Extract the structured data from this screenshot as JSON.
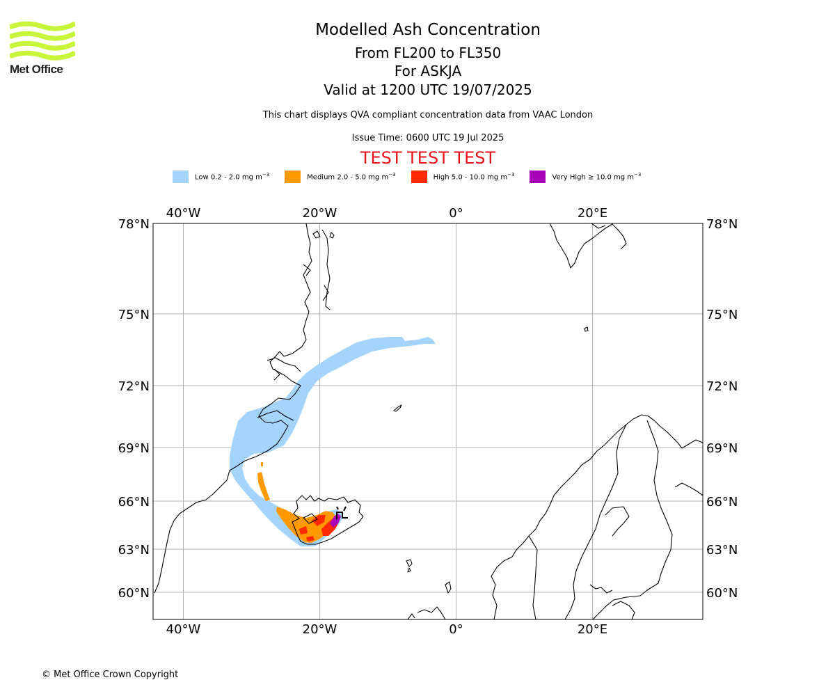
{
  "brand": {
    "name": "Met Office",
    "logo_color": "#c8f53a",
    "logo_icon": "wave-logo-icon"
  },
  "header": {
    "title": "Modelled Ash Concentration",
    "levels": "From FL200 to FL350",
    "volcano": "For ASKJA",
    "valid": "Valid at 1200 UTC 19/07/2025",
    "description": "This chart displays QVA compliant concentration data from VAAC London",
    "issue_time": "Issue Time: 0600 UTC 19 Jul 2025",
    "test_banner": "TEST TEST TEST"
  },
  "legend": [
    {
      "label": "Low 0.2 - 2.0 mg m",
      "exp": "−3",
      "color": "#a4d4fc"
    },
    {
      "label": "Medium 2.0 - 5.0 mg m",
      "exp": "−3",
      "color": "#ff9900"
    },
    {
      "label": "High 5.0 - 10.0 mg m",
      "exp": "−3",
      "color": "#ff2a00"
    },
    {
      "label": "Very High  ≥  10.0 mg m",
      "exp": "−3",
      "color": "#a800b8"
    }
  ],
  "map": {
    "lon_ticks": [
      "40°W",
      "20°W",
      "0°",
      "20°E"
    ],
    "lat_ticks": [
      "78°N",
      "75°N",
      "72°N",
      "69°N",
      "66°N",
      "63°N",
      "60°N"
    ],
    "lon_values": [
      -40,
      -20,
      0,
      20
    ],
    "lat_values": [
      78,
      75,
      72,
      69,
      66,
      63,
      60
    ],
    "grid": true,
    "coastline_color": "#000000",
    "grid_color": "#b0b0b0"
  },
  "footer": {
    "copyright": "© Met Office Crown Copyright"
  }
}
